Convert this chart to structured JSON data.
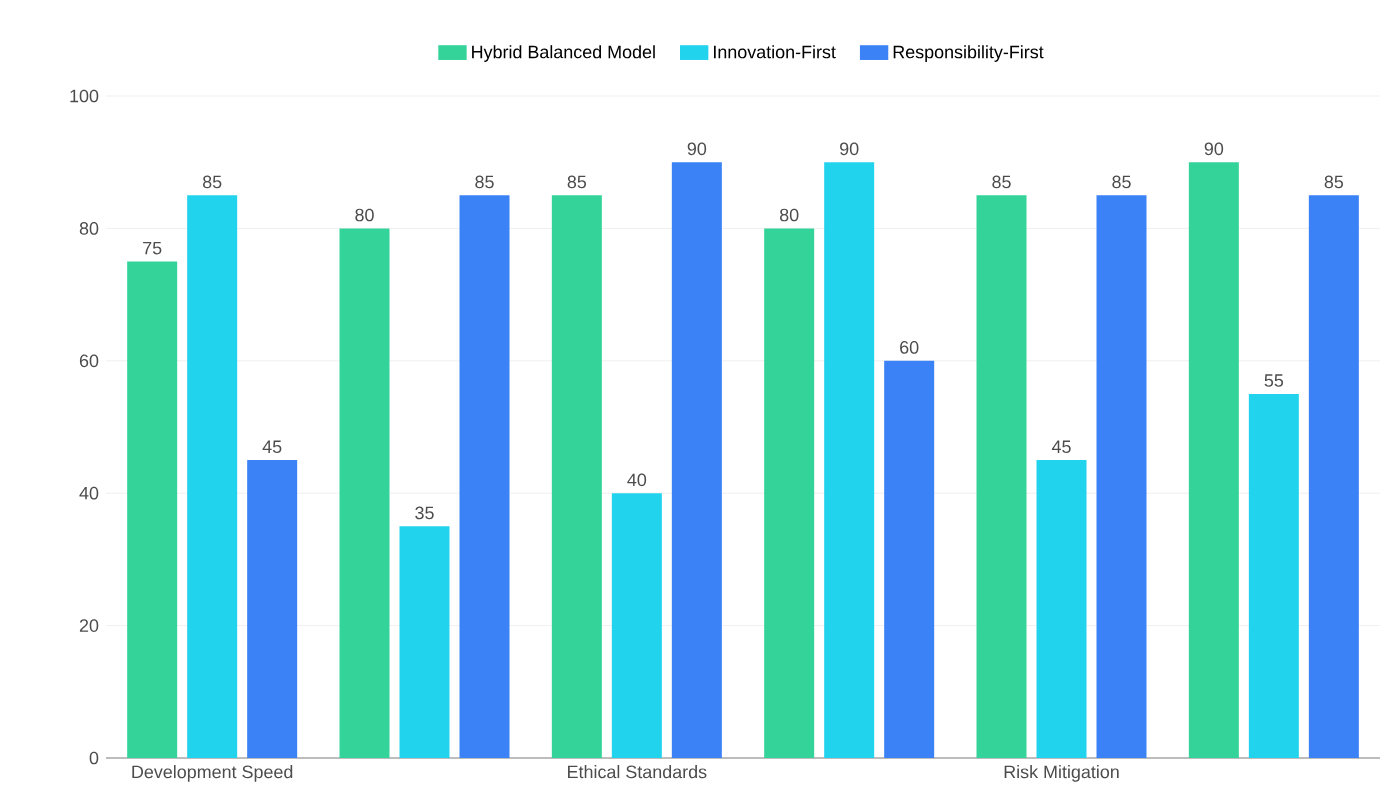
{
  "chart_data": {
    "type": "bar",
    "categories": [
      "Development Speed",
      null,
      "Ethical Standards",
      null,
      "Risk Mitigation",
      null
    ],
    "series": [
      {
        "name": "Hybrid Balanced Model",
        "color": "#34d399",
        "values": [
          75,
          80,
          85,
          80,
          85,
          90
        ]
      },
      {
        "name": "Innovation-First",
        "color": "#22d3ee",
        "values": [
          85,
          35,
          40,
          90,
          45,
          55
        ]
      },
      {
        "name": "Responsibility-First",
        "color": "#3b82f6",
        "values": [
          45,
          85,
          90,
          60,
          85,
          85
        ]
      }
    ],
    "ylim": [
      0,
      100
    ],
    "yticks": [
      0,
      20,
      40,
      60,
      80,
      100
    ],
    "grid": "y",
    "legend": "top",
    "data_labels": true
  }
}
